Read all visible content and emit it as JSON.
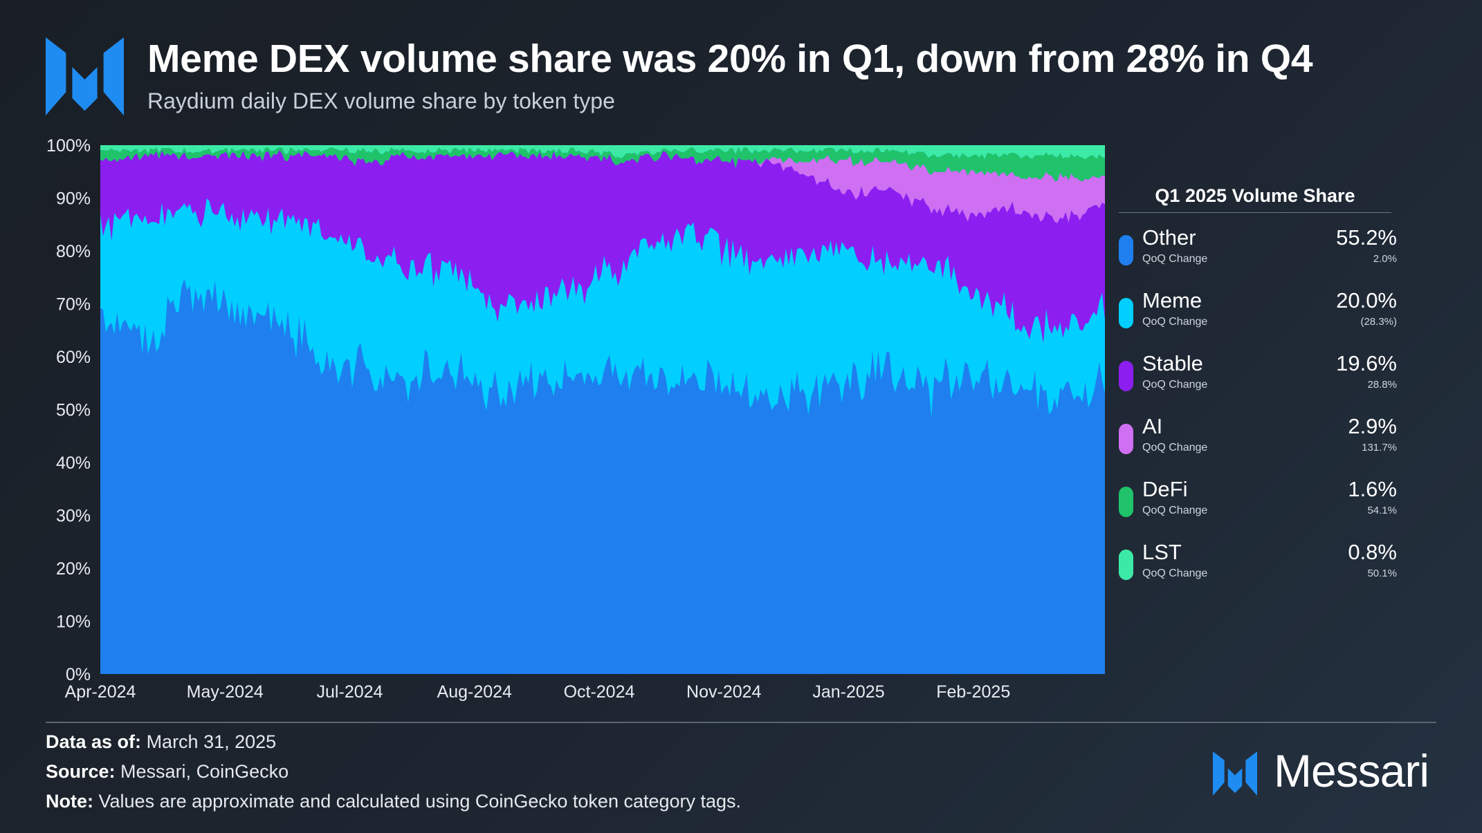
{
  "header": {
    "title": "Meme DEX volume share was 20% in Q1, down from 28% in Q4",
    "subtitle": "Raydium daily DEX volume share by token type"
  },
  "chart_data": {
    "type": "area",
    "stacked": true,
    "normalized": true,
    "title": "Meme DEX volume share was 20% in Q1, down from 28% in Q4",
    "subtitle": "Raydium daily DEX volume share by token type",
    "xlabel": "",
    "ylabel": "",
    "ylim": [
      0,
      100
    ],
    "y_ticks": [
      "100%",
      "90%",
      "80%",
      "70%",
      "60%",
      "50%",
      "40%",
      "30%",
      "20%",
      "10%",
      "0%"
    ],
    "x_ticks": [
      "Apr-2024",
      "May-2024",
      "Jul-2024",
      "Aug-2024",
      "Oct-2024",
      "Nov-2024",
      "Jan-2025",
      "Feb-2025"
    ],
    "x": [
      "Apr-2024",
      "Apr-2024",
      "May-2024",
      "May-2024",
      "Jun-2024",
      "Jun-2024",
      "Jul-2024",
      "Jul-2024",
      "Aug-2024",
      "Aug-2024",
      "Sep-2024",
      "Sep-2024",
      "Oct-2024",
      "Oct-2024",
      "Nov-2024",
      "Nov-2024",
      "Dec-2024",
      "Dec-2024",
      "Jan-2025",
      "Jan-2025",
      "Feb-2025",
      "Feb-2025",
      "Mar-2025",
      "Mar-2025"
    ],
    "series": [
      {
        "name": "Other",
        "color": "#1f7fef",
        "values": [
          68,
          62,
          72,
          70,
          66,
          60,
          56,
          55,
          57,
          54,
          54,
          56,
          55,
          56,
          55,
          52,
          53,
          55,
          58,
          54,
          56,
          53,
          53,
          54
        ]
      },
      {
        "name": "Meme",
        "color": "#00cfff",
        "values": [
          17,
          24,
          16,
          16,
          20,
          24,
          24,
          22,
          20,
          16,
          16,
          18,
          22,
          27,
          27,
          26,
          26,
          25,
          20,
          24,
          16,
          14,
          12,
          15
        ]
      },
      {
        "name": "Stable",
        "color": "#8d1ef0",
        "values": [
          12,
          12,
          10,
          12,
          12,
          14,
          17,
          21,
          21,
          28,
          28,
          24,
          20,
          15,
          15,
          19,
          16,
          11,
          14,
          10,
          15,
          21,
          21,
          20
        ]
      },
      {
        "name": "AI",
        "color": "#cf6ff2",
        "values": [
          0,
          0,
          0,
          0,
          0,
          0,
          0,
          0,
          0,
          0,
          0,
          0,
          0,
          0,
          0,
          0,
          2,
          6,
          5,
          7,
          8,
          6,
          8,
          5
        ]
      },
      {
        "name": "DeFi",
        "color": "#20c36a",
        "values": [
          2,
          1,
          1,
          1,
          1,
          1,
          2,
          1,
          1,
          1,
          1,
          1,
          1,
          1,
          2,
          2,
          2,
          2,
          2,
          3,
          3,
          4,
          4,
          4
        ]
      },
      {
        "name": "LST",
        "color": "#3ceaa6",
        "values": [
          1,
          1,
          1,
          1,
          1,
          1,
          1,
          1,
          1,
          1,
          1,
          1,
          2,
          1,
          1,
          1,
          1,
          1,
          1,
          2,
          2,
          2,
          2,
          2
        ]
      }
    ],
    "legend_placement": "right"
  },
  "legend": {
    "title": "Q1 2025 Volume Share",
    "sub_label": "QoQ Change",
    "items": [
      {
        "name": "Other",
        "value": "55.2%",
        "change": "2.0%",
        "color": "#1f7fef"
      },
      {
        "name": "Meme",
        "value": "20.0%",
        "change": "(28.3%)",
        "color": "#00cfff"
      },
      {
        "name": "Stable",
        "value": "19.6%",
        "change": "28.8%",
        "color": "#8d1ef0"
      },
      {
        "name": "AI",
        "value": "2.9%",
        "change": "131.7%",
        "color": "#cf6ff2"
      },
      {
        "name": "DeFi",
        "value": "1.6%",
        "change": "54.1%",
        "color": "#20c36a"
      },
      {
        "name": "LST",
        "value": "0.8%",
        "change": "50.1%",
        "color": "#3ceaa6"
      }
    ]
  },
  "footer": {
    "data_as_of_label": "Data as of:",
    "data_as_of_value": "March 31, 2025",
    "source_label": "Source:",
    "source_value": "Messari, CoinGecko",
    "note_label": "Note:",
    "note_value": "Values are approximate and calculated using CoinGecko token category tags."
  },
  "brand": {
    "name": "Messari",
    "color": "#1f8cf2"
  }
}
